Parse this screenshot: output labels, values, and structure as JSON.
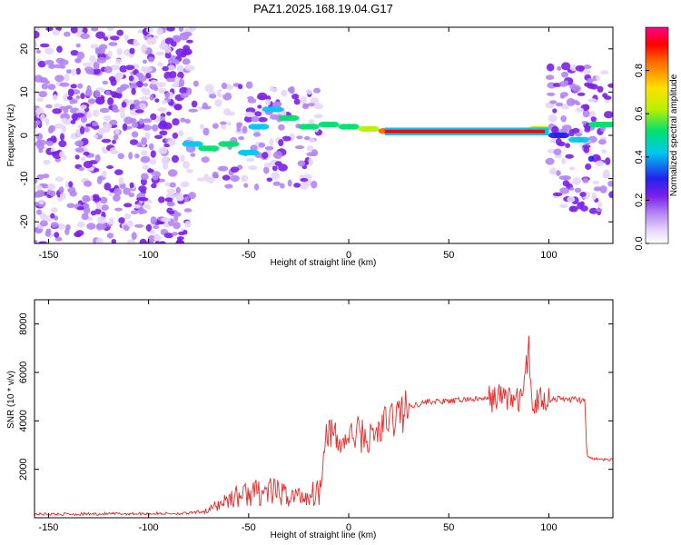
{
  "title": "PAZ1.2025.168.19.04.G17",
  "colors": {
    "snr_line": "#e82a2a",
    "colormap": [
      "#ffffff",
      "#e6d6fa",
      "#b385f3",
      "#7a1fe8",
      "#2222ee",
      "#00c8ee",
      "#00e070",
      "#b8f000",
      "#ffe000",
      "#ff6a00",
      "#ff0000",
      "#ff0088"
    ]
  },
  "chart_data": [
    {
      "type": "heatmap",
      "xlabel": "Height of straight line (km)",
      "ylabel": "Frequency (Hz)",
      "xlim": [
        -157,
        132
      ],
      "ylim": [
        -25,
        25
      ],
      "xticks": [
        -150,
        -100,
        -50,
        0,
        50,
        100
      ],
      "yticks": [
        -20,
        -10,
        0,
        10,
        20
      ],
      "colorbar": {
        "label": "Normalized spectral amplitude",
        "range": [
          0,
          1
        ],
        "ticks": [
          0.0,
          0.2,
          0.4,
          0.6,
          0.8
        ]
      },
      "ridge": [
        {
          "height_km": -78,
          "frequency_hz": -2,
          "amplitude": 0.45
        },
        {
          "height_km": -70,
          "frequency_hz": -3,
          "amplitude": 0.5
        },
        {
          "height_km": -60,
          "frequency_hz": -2,
          "amplitude": 0.5
        },
        {
          "height_km": -50,
          "frequency_hz": -4,
          "amplitude": 0.45
        },
        {
          "height_km": -45,
          "frequency_hz": 2,
          "amplitude": 0.45
        },
        {
          "height_km": -38,
          "frequency_hz": 6,
          "amplitude": 0.45
        },
        {
          "height_km": -30,
          "frequency_hz": 4,
          "amplitude": 0.5
        },
        {
          "height_km": -20,
          "frequency_hz": 2,
          "amplitude": 0.5
        },
        {
          "height_km": -10,
          "frequency_hz": 2.5,
          "amplitude": 0.55
        },
        {
          "height_km": 0,
          "frequency_hz": 2,
          "amplitude": 0.55
        },
        {
          "height_km": 10,
          "frequency_hz": 1.5,
          "amplitude": 0.6
        },
        {
          "height_km": 20,
          "frequency_hz": 1,
          "amplitude": 0.85
        },
        {
          "height_km": 40,
          "frequency_hz": 1,
          "amplitude": 0.9
        },
        {
          "height_km": 60,
          "frequency_hz": 1,
          "amplitude": 0.9
        },
        {
          "height_km": 80,
          "frequency_hz": 1,
          "amplitude": 0.75
        },
        {
          "height_km": 95,
          "frequency_hz": 1.5,
          "amplitude": 0.6
        },
        {
          "height_km": 105,
          "frequency_hz": 0,
          "amplitude": 0.4
        },
        {
          "height_km": 115,
          "frequency_hz": -1,
          "amplitude": 0.45
        },
        {
          "height_km": 125,
          "frequency_hz": 2.5,
          "amplitude": 0.55
        },
        {
          "height_km": 130,
          "frequency_hz": 2.5,
          "amplitude": 0.55
        }
      ]
    },
    {
      "type": "line",
      "xlabel": "Height of straight line (km)",
      "ylabel": "SNR (10 * v/v)",
      "xlim": [
        -157,
        132
      ],
      "ylim": [
        0,
        9000
      ],
      "xticks": [
        -150,
        -100,
        -50,
        0,
        50,
        100
      ],
      "yticks": [
        2000,
        4000,
        6000,
        8000
      ],
      "series": [
        {
          "x": [
            -157,
            -140,
            -120,
            -100,
            -80,
            -70,
            -60,
            -50,
            -40,
            -30,
            -20,
            -14,
            -12,
            -10,
            -5,
            0,
            5,
            10,
            15,
            20,
            25,
            30,
            40,
            50,
            60,
            70,
            75,
            80,
            85,
            88,
            90,
            92,
            95,
            100,
            110,
            118,
            119,
            125,
            132
          ],
          "y": [
            150,
            150,
            160,
            170,
            180,
            300,
            800,
            1000,
            1100,
            900,
            900,
            1200,
            3500,
            3700,
            3000,
            3300,
            3500,
            3200,
            3600,
            4000,
            4300,
            4600,
            4800,
            4800,
            4900,
            4900,
            5000,
            5000,
            4800,
            5500,
            7000,
            4500,
            5000,
            4900,
            4900,
            4850,
            2500,
            2400,
            2400
          ]
        }
      ]
    }
  ]
}
